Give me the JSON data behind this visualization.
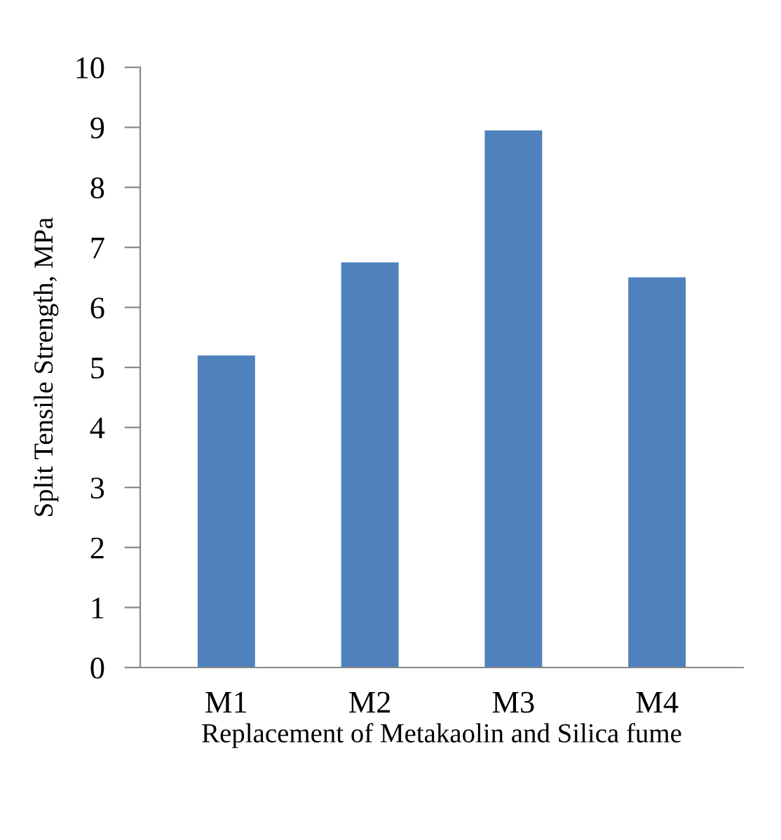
{
  "chart_data": {
    "type": "bar",
    "xlabel": "Replacement of Metakaolin and Silica fume",
    "ylabel": "Split Tensile Strength, MPa",
    "categories": [
      "M1",
      "M2",
      "M3",
      "M4"
    ],
    "values": [
      5.2,
      6.75,
      8.95,
      6.5
    ],
    "color": "#4f81bd",
    "ylim": [
      0,
      10
    ],
    "yticks": [
      0,
      1,
      2,
      3,
      4,
      5,
      6,
      7,
      8,
      9,
      10
    ],
    "grid": false,
    "legend": false
  }
}
